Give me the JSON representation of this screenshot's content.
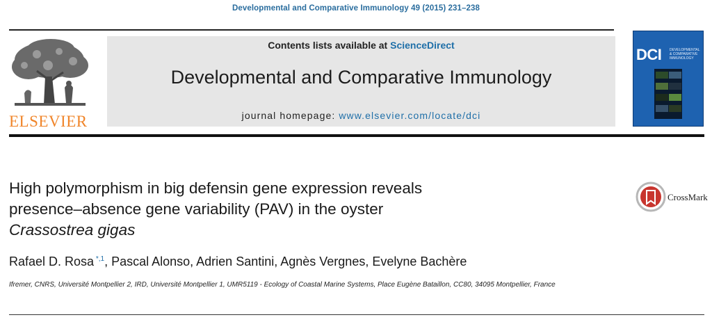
{
  "citation": "Developmental and Comparative Immunology 49 (2015) 231–238",
  "publisher": {
    "name": "ELSEVIER",
    "logo_icon": "elsevier-tree-icon"
  },
  "header": {
    "contents_prefix": "Contents lists available at ",
    "contents_link": "ScienceDirect",
    "journal_title": "Developmental and Comparative Immunology",
    "homepage_prefix": "journal homepage: ",
    "homepage_url": "www.elsevier.com/locate/dci"
  },
  "cover": {
    "abbr": "DCI",
    "subtitle": "Developmental & Comparative Immunology",
    "color": "#1e62b0"
  },
  "article": {
    "title_line1": "High polymorphism in big defensin gene expression reveals",
    "title_line2": "presence–absence gene variability (PAV) in the oyster",
    "title_line3": "Crassostrea gigas",
    "authors_first": "Rafael D. Rosa",
    "author_marks": " *,1",
    "authors_rest": ", Pascal Alonso, Adrien Santini, Agnès Vergnes, Evelyne Bachère",
    "affiliation": "Ifremer, CNRS, Université Montpellier 2, IRD, Université Montpellier 1, UMR5119 - Ecology of Coastal Marine Systems, Place Eugène Bataillon, CC80, 34095 Montpellier, France"
  },
  "crossmark": {
    "label": "CrossMark",
    "icon": "crossmark-icon"
  },
  "colors": {
    "link": "#1f6fa8",
    "citation": "#2a6d9e",
    "publisher_orange": "#f0852a",
    "band": "#e6e6e6"
  }
}
